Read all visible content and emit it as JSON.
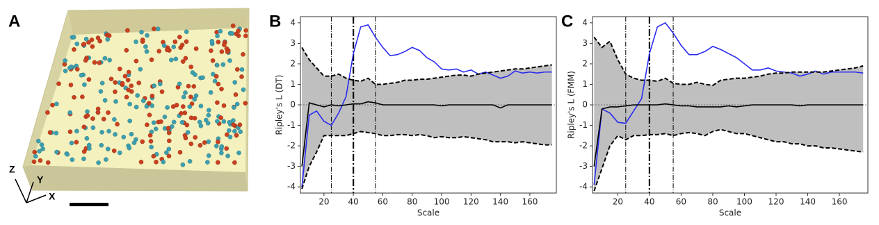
{
  "panel_a": {
    "label": "A",
    "axis_labels": [
      "Z",
      "Y",
      "X"
    ]
  },
  "chart_data": [
    {
      "type": "line",
      "label": "B",
      "x_label": "Scale",
      "y_label": "Ripley's L (DT)",
      "x": [
        5,
        10,
        15,
        20,
        25,
        30,
        35,
        40,
        45,
        50,
        55,
        60,
        65,
        70,
        75,
        80,
        85,
        90,
        95,
        100,
        105,
        110,
        115,
        120,
        125,
        130,
        135,
        140,
        145,
        150,
        155,
        160,
        165,
        170,
        175
      ],
      "series": [
        {
          "color": "#2b2bf0",
          "style": "solid",
          "width": 1.6,
          "values": [
            -4.0,
            -0.5,
            -0.3,
            -0.8,
            -1.0,
            -0.4,
            0.4,
            2.5,
            3.8,
            3.9,
            3.3,
            2.8,
            2.4,
            2.45,
            2.6,
            2.8,
            2.65,
            2.3,
            2.1,
            1.75,
            1.7,
            1.75,
            1.6,
            1.7,
            1.5,
            1.6,
            1.45,
            1.3,
            1.4,
            1.65,
            1.55,
            1.6,
            1.55,
            1.6,
            1.6
          ]
        },
        {
          "color": "#000000",
          "style": "solid",
          "width": 1.6,
          "values": [
            -3.0,
            0.1,
            0.0,
            -0.1,
            0.0,
            -0.05,
            0.0,
            0.05,
            0.05,
            0.15,
            0.1,
            0.0,
            0.0,
            0.0,
            0.0,
            0.0,
            0.0,
            0.0,
            0.0,
            -0.05,
            0.0,
            0.0,
            0.0,
            0.0,
            0.0,
            0.0,
            0.0,
            -0.15,
            0.0,
            0.0,
            0.0,
            0.0,
            0.0,
            0.0,
            0.0
          ]
        },
        {
          "color": "#000000",
          "style": "dashed",
          "width": 2,
          "values": [
            2.8,
            2.2,
            1.8,
            1.4,
            1.4,
            1.5,
            1.3,
            1.2,
            1.15,
            1.3,
            1.0,
            1.0,
            1.05,
            1.1,
            1.2,
            1.2,
            1.25,
            1.25,
            1.3,
            1.35,
            1.4,
            1.45,
            1.45,
            1.4,
            1.5,
            1.55,
            1.6,
            1.65,
            1.7,
            1.75,
            1.75,
            1.8,
            1.85,
            1.9,
            1.95
          ]
        },
        {
          "color": "#000000",
          "style": "dashed",
          "width": 2,
          "values": [
            -4.1,
            -3.0,
            -2.3,
            -1.5,
            -1.5,
            -1.5,
            -1.5,
            -1.4,
            -1.3,
            -1.35,
            -1.4,
            -1.5,
            -1.5,
            -1.45,
            -1.45,
            -1.5,
            -1.45,
            -1.5,
            -1.6,
            -1.55,
            -1.6,
            -1.6,
            -1.55,
            -1.6,
            -1.65,
            -1.7,
            -1.8,
            -1.8,
            -1.8,
            -1.85,
            -1.8,
            -1.85,
            -1.9,
            -1.95,
            -1.95
          ]
        }
      ],
      "band_between": [
        2,
        3
      ],
      "band_color": "#bfbfbf",
      "vlines": [
        {
          "x": 25,
          "width": 1
        },
        {
          "x": 40,
          "width": 2.2
        },
        {
          "x": 55,
          "width": 1
        }
      ],
      "hline": 0,
      "xlim": [
        4,
        178
      ],
      "xticks": [
        20,
        40,
        60,
        80,
        100,
        120,
        140,
        160
      ],
      "ylim": [
        -4.3,
        4.3
      ],
      "yticks": [
        -4,
        -3,
        -2,
        -1,
        0,
        1,
        2,
        3,
        4
      ]
    },
    {
      "type": "line",
      "label": "C",
      "x_label": "Scale",
      "y_label": "Ripley's L (FMM)",
      "x": [
        5,
        10,
        15,
        20,
        25,
        30,
        35,
        40,
        45,
        50,
        55,
        60,
        65,
        70,
        75,
        80,
        85,
        90,
        95,
        100,
        105,
        110,
        115,
        120,
        125,
        130,
        135,
        140,
        145,
        150,
        155,
        160,
        165,
        170,
        175
      ],
      "series": [
        {
          "color": "#2b2bf0",
          "style": "solid",
          "width": 1.6,
          "values": [
            -3.9,
            -0.2,
            -0.4,
            -0.85,
            -0.9,
            -0.3,
            0.3,
            2.5,
            3.8,
            4.0,
            3.5,
            2.9,
            2.45,
            2.45,
            2.6,
            2.85,
            2.7,
            2.5,
            2.3,
            2.0,
            1.7,
            1.7,
            1.8,
            1.65,
            1.6,
            1.55,
            1.4,
            1.5,
            1.65,
            1.5,
            1.6,
            1.6,
            1.6,
            1.6,
            1.55
          ]
        },
        {
          "color": "#000000",
          "style": "solid",
          "width": 1.6,
          "values": [
            -3.0,
            -0.2,
            -0.1,
            -0.1,
            -0.05,
            0.0,
            0.0,
            0.0,
            0.0,
            0.05,
            0.0,
            -0.05,
            -0.05,
            -0.1,
            -0.1,
            -0.1,
            -0.1,
            -0.05,
            -0.1,
            -0.05,
            0.0,
            0.0,
            0.0,
            0.0,
            0.0,
            0.0,
            -0.05,
            0.0,
            0.0,
            0.0,
            0.0,
            0.0,
            0.0,
            0.0,
            0.0
          ]
        },
        {
          "color": "#000000",
          "style": "dashed",
          "width": 2,
          "values": [
            3.3,
            2.8,
            3.1,
            2.2,
            1.5,
            1.3,
            1.2,
            1.2,
            1.15,
            1.3,
            1.05,
            1.0,
            1.0,
            1.1,
            1.0,
            0.95,
            1.2,
            1.25,
            1.3,
            1.3,
            1.35,
            1.4,
            1.5,
            1.55,
            1.55,
            1.6,
            1.6,
            1.6,
            1.6,
            1.6,
            1.65,
            1.7,
            1.75,
            1.8,
            1.9
          ]
        },
        {
          "color": "#000000",
          "style": "dashed",
          "width": 2,
          "values": [
            -4.2,
            -3.1,
            -2.0,
            -1.5,
            -1.7,
            -1.5,
            -1.5,
            -1.45,
            -1.45,
            -1.4,
            -1.5,
            -1.4,
            -1.35,
            -1.4,
            -1.5,
            -1.3,
            -1.2,
            -1.3,
            -1.4,
            -1.4,
            -1.5,
            -1.6,
            -1.7,
            -1.8,
            -1.8,
            -1.9,
            -1.9,
            -2.0,
            -2.0,
            -2.1,
            -2.1,
            -2.15,
            -2.2,
            -2.25,
            -2.3
          ]
        }
      ],
      "band_between": [
        2,
        3
      ],
      "band_color": "#bfbfbf",
      "vlines": [
        {
          "x": 25,
          "width": 1
        },
        {
          "x": 40,
          "width": 2.2
        },
        {
          "x": 55,
          "width": 1
        }
      ],
      "hline": 0,
      "xlim": [
        4,
        178
      ],
      "xticks": [
        20,
        40,
        60,
        80,
        100,
        120,
        140,
        160
      ],
      "ylim": [
        -4.3,
        4.3
      ],
      "yticks": [
        -4,
        -3,
        -2,
        -1,
        0,
        1,
        2,
        3,
        4
      ]
    }
  ]
}
